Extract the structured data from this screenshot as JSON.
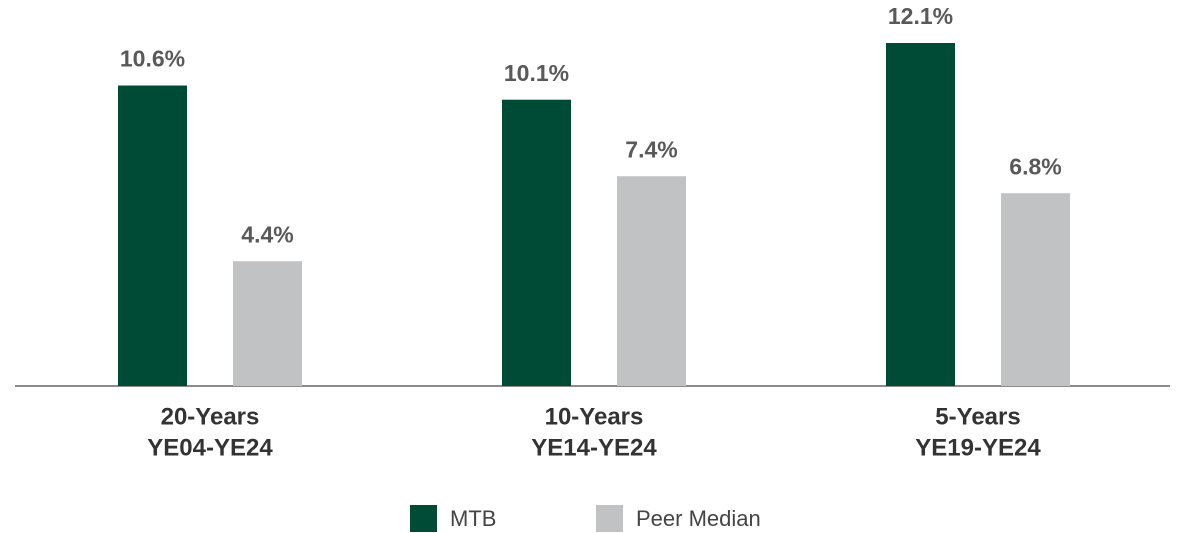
{
  "chart_data": {
    "type": "bar",
    "categories": [
      [
        "20-Years",
        "YE04-YE24"
      ],
      [
        "10-Years",
        "YE14-YE24"
      ],
      [
        "5-Years",
        "YE19-YE24"
      ]
    ],
    "series": [
      {
        "name": "MTB",
        "color": "#004b35",
        "values": [
          10.6,
          10.1,
          12.1
        ],
        "value_labels": [
          "10.6%",
          "10.1%",
          "12.1%"
        ]
      },
      {
        "name": "Peer Median",
        "color": "#c1c2c4",
        "values": [
          4.4,
          7.4,
          6.8
        ],
        "value_labels": [
          "4.4%",
          "7.4%",
          "6.8%"
        ]
      }
    ],
    "legend": "bottom"
  }
}
